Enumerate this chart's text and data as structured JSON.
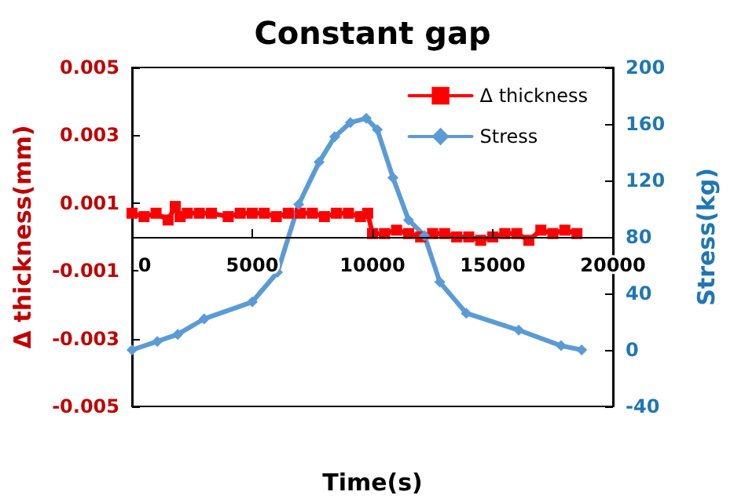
{
  "chart_data": {
    "type": "line",
    "title": "Constant gap",
    "xlabel": "Time(s)",
    "ylabel": "Δ thickness(mm)",
    "y2label": "Stress(kg)",
    "xlim": [
      0,
      20000
    ],
    "xticks": [
      0,
      5000,
      10000,
      15000,
      20000
    ],
    "ylim": [
      -0.005,
      0.005
    ],
    "yticks": [
      -0.005,
      -0.003,
      -0.001,
      0.001,
      0.003,
      0.005
    ],
    "y2lim": [
      -40,
      200
    ],
    "y2ticks": [
      -40,
      0,
      40,
      80,
      120,
      160,
      200
    ],
    "legend": "top right",
    "grid": false,
    "line_style": "solid",
    "series": [
      {
        "name": "Δ thickness",
        "color": "#ff0000",
        "marker": "square",
        "x": [
          0,
          500,
          1000,
          1500,
          1800,
          2000,
          2300,
          2800,
          3300,
          4000,
          4500,
          5000,
          5500,
          6000,
          6500,
          7000,
          7500,
          8000,
          8500,
          9000,
          9500,
          9800,
          10000,
          10500,
          11000,
          11500,
          12000,
          12500,
          13000,
          13500,
          14000,
          14500,
          15000,
          15500,
          16000,
          16500,
          17000,
          17500,
          18000,
          18500
        ],
        "values": [
          0.0007,
          0.0006,
          0.0007,
          0.0005,
          0.0009,
          0.0006,
          0.0007,
          0.0007,
          0.0007,
          0.0006,
          0.0007,
          0.0007,
          0.0007,
          0.0006,
          0.0007,
          0.0007,
          0.0007,
          0.0006,
          0.0007,
          0.0007,
          0.0006,
          0.0007,
          0.0001,
          0.0001,
          0.0002,
          0.0001,
          0.0,
          0.0001,
          0.0001,
          0.0,
          0.0,
          -0.0001,
          0.0,
          0.0001,
          0.0001,
          -0.0001,
          0.0002,
          0.0001,
          0.0002,
          0.0001
        ]
      },
      {
        "name": "Stress",
        "color": "#5b9bd5",
        "marker": "diamond",
        "axis": "y2",
        "x": [
          0,
          1050,
          1900,
          3000,
          5000,
          6050,
          6930,
          7780,
          8430,
          9080,
          9740,
          10200,
          10850,
          11500,
          12160,
          12800,
          13900,
          16080,
          17840,
          18700
        ],
        "values": [
          0,
          6,
          11,
          22,
          34,
          55,
          103,
          133,
          151,
          161,
          164,
          156,
          122,
          92,
          81,
          48,
          26,
          14,
          3,
          0
        ]
      }
    ]
  }
}
